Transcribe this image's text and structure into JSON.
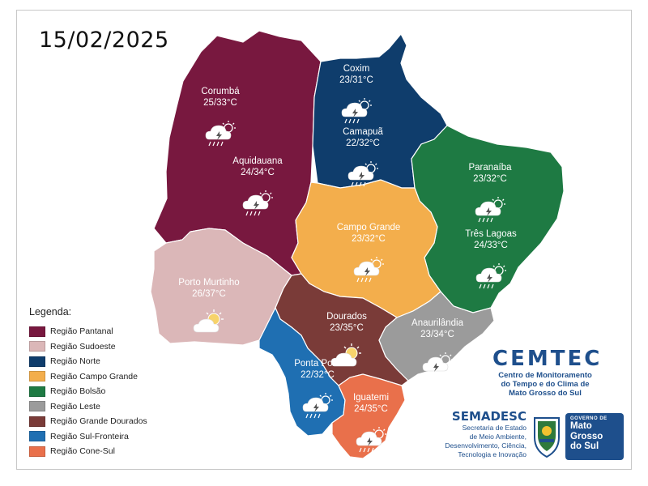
{
  "date": "15/02/2025",
  "colors": {
    "pantanal": "#78183f",
    "sudoeste": "#dbb7b8",
    "norte": "#0f3d6c",
    "campo_grande": "#f3ae4c",
    "bolsao": "#1e7a43",
    "leste": "#9b9b9b",
    "grande_dourados": "#7a3b38",
    "sul_fronteira": "#1f6fb2",
    "cone_sul": "#e9704b"
  },
  "cities": [
    {
      "name": "Corumbá",
      "temp": "25/33°C",
      "icon": "storm-cloud-icon"
    },
    {
      "name": "Aquidauana",
      "temp": "24/34°C",
      "icon": "storm-cloud-icon"
    },
    {
      "name": "Coxim",
      "temp": "23/31°C",
      "icon": "storm-cloud-icon"
    },
    {
      "name": "Camapuã",
      "temp": "22/32°C",
      "icon": "storm-cloud-icon"
    },
    {
      "name": "Paranaíba",
      "temp": "23/32°C",
      "icon": "storm-cloud-icon"
    },
    {
      "name": "Três Lagoas",
      "temp": "24/33°C",
      "icon": "storm-cloud-icon"
    },
    {
      "name": "Campo Grande",
      "temp": "23/32°C",
      "icon": "storm-cloud-icon"
    },
    {
      "name": "Porto Murtinho",
      "temp": "26/37°C",
      "icon": "partly-cloudy-icon"
    },
    {
      "name": "Dourados",
      "temp": "23/35°C",
      "icon": "partly-cloudy-icon"
    },
    {
      "name": "Anaurilândia",
      "temp": "23/34°C",
      "icon": "storm-cloud-icon"
    },
    {
      "name": "Ponta Porã",
      "temp": "22/32°C",
      "icon": "storm-cloud-icon"
    },
    {
      "name": "Iguatemi",
      "temp": "24/35°C",
      "icon": "storm-cloud-icon"
    }
  ],
  "legend": {
    "title": "Legenda:",
    "items": [
      {
        "label": "Região Pantanal",
        "color": "#78183f"
      },
      {
        "label": "Região Sudoeste",
        "color": "#dbb7b8"
      },
      {
        "label": "Região Norte",
        "color": "#0f3d6c"
      },
      {
        "label": "Região Campo Grande",
        "color": "#f3ae4c"
      },
      {
        "label": "Região Bolsão",
        "color": "#1e7a43"
      },
      {
        "label": "Região Leste",
        "color": "#9b9b9b"
      },
      {
        "label": "Região Grande Dourados",
        "color": "#7a3b38"
      },
      {
        "label": "Região Sul-Fronteira",
        "color": "#1f6fb2"
      },
      {
        "label": "Região Cone-Sul",
        "color": "#e9704b"
      }
    ]
  },
  "cemtec": {
    "title": "CEMTEC",
    "line1": "Centro de Monitoramento",
    "line2": "do Tempo e do Clima de",
    "line3": "Mato Grosso do Sul"
  },
  "semadesc": {
    "title": "SEMADESC",
    "line1": "Secretaria de Estado",
    "line2": "de Meio Ambiente,",
    "line3": "Desenvolvimento, Ciência,",
    "line4": "Tecnologia e Inovação"
  },
  "gov": {
    "top": "GOVERNO DE",
    "line1": "Mato",
    "line2": "Grosso",
    "line3": "do Sul"
  }
}
